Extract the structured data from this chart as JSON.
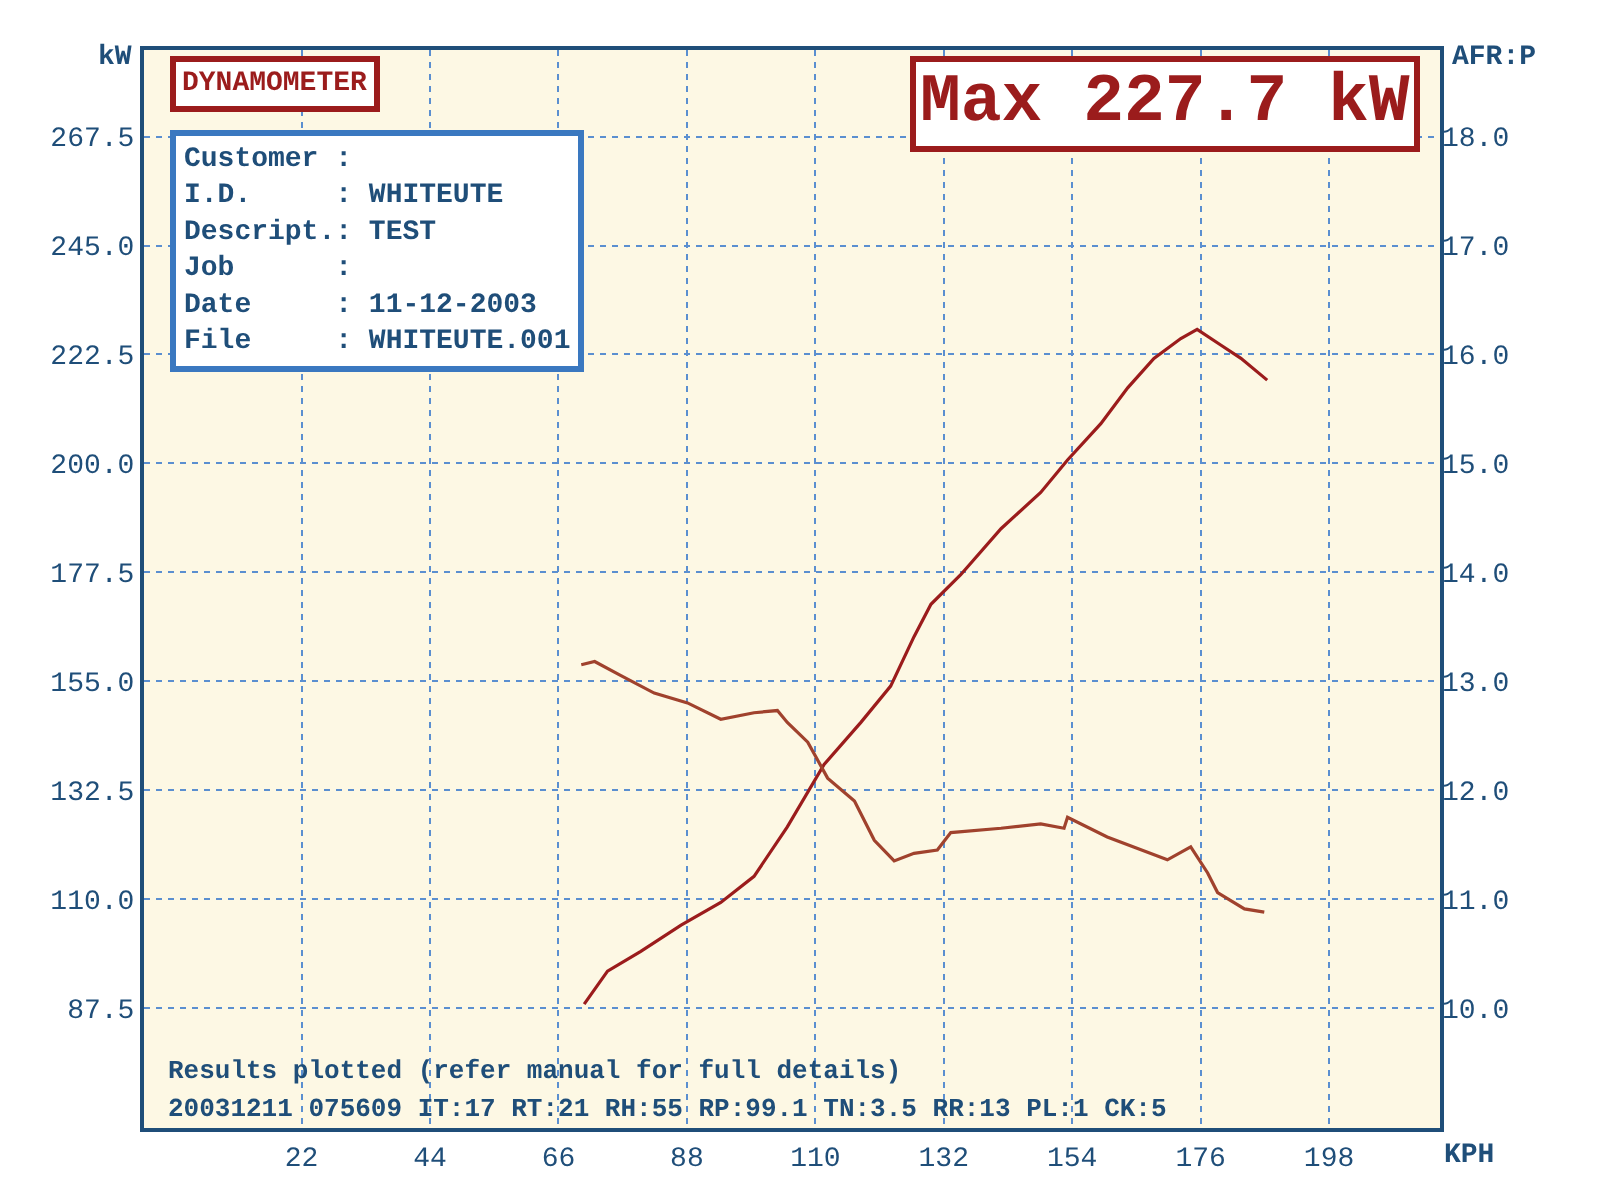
{
  "chart_data": {
    "type": "line",
    "xlabel": "KPH",
    "ylabel": "kW",
    "y2label": "AFR:P",
    "xlim": [
      -5,
      217
    ],
    "xticks": [
      22,
      44,
      66,
      88,
      110,
      132,
      154,
      176,
      198
    ],
    "ylim": [
      62.7,
      285.4
    ],
    "yticks": [
      87.5,
      {
        "value": 110,
        "label": "110.0"
      },
      132.5,
      {
        "value": 155,
        "label": "155.0"
      },
      177.5,
      {
        "value": 200,
        "label": "200.0"
      },
      222.5,
      {
        "value": 245,
        "label": "245.0"
      },
      267.5
    ],
    "y2lim": [
      8.9,
      18.79
    ],
    "y2ticks": [
      {
        "value": 10,
        "label": "10.0"
      },
      {
        "value": 11,
        "label": "11.0"
      },
      {
        "value": 12,
        "label": "12.0"
      },
      {
        "value": 13,
        "label": "13.0"
      },
      {
        "value": 14,
        "label": "14.0"
      },
      {
        "value": 15,
        "label": "15.0"
      },
      {
        "value": 16,
        "label": "16.0"
      },
      {
        "value": 17,
        "label": "17.0"
      },
      {
        "value": 18,
        "label": "18.0"
      }
    ],
    "grid": true,
    "marker": "none",
    "line_style": "solid",
    "series": [
      {
        "color": "#9b1c1c",
        "x": [
          70.4,
          74.4,
          80.1,
          87.0,
          93.8,
          99.5,
          105.2,
          111.5,
          117.8,
          122.9,
          126.9,
          129.8,
          134.9,
          141.8,
          148.6,
          153.2,
          158.9,
          163.5,
          168.0,
          172.6,
          175.4,
          179.5,
          182.9,
          187.4
        ],
        "values": [
          88.3,
          95.1,
          99.2,
          104.6,
          109.3,
          114.7,
          124.9,
          137.8,
          146.5,
          154.0,
          164.2,
          170.9,
          177.0,
          186.5,
          194.0,
          200.7,
          208.2,
          215.6,
          221.7,
          225.8,
          227.7,
          224.4,
          221.7,
          217.2
        ]
      },
      {
        "color": "#a0422d",
        "axis": "y2",
        "x": [
          69.9,
          72.2,
          76.7,
          82.4,
          88.1,
          93.8,
          99.5,
          103.5,
          105.2,
          108.7,
          112.1,
          116.7,
          120.1,
          123.5,
          126.9,
          130.9,
          133.2,
          141.8,
          148.6,
          152.6,
          153.2,
          160.0,
          170.3,
          174.3,
          177.2,
          178.9,
          183.5,
          186.9
        ],
        "values": [
          13.15,
          13.18,
          13.05,
          12.89,
          12.8,
          12.65,
          12.71,
          12.73,
          12.62,
          12.44,
          12.11,
          11.9,
          11.54,
          11.35,
          11.42,
          11.45,
          11.61,
          11.65,
          11.69,
          11.65,
          11.75,
          11.57,
          11.36,
          11.48,
          11.24,
          11.06,
          10.91,
          10.88
        ]
      }
    ],
    "annotations": [
      "DYNAMOMETER",
      "Customer :",
      "I.D.     : WHITEUTE",
      "Descript.: TEST",
      "Job      :",
      "Date     : 11-12-2003",
      "File     : WHITEUTE.001",
      "Max 227.7 kW",
      "Results plotted (refer manual for full details)",
      "20031211 075609 IT:17 RT:21 RH:55 RP:99.1 TN:3.5 RR:13 PL:1 CK:5"
    ]
  }
}
